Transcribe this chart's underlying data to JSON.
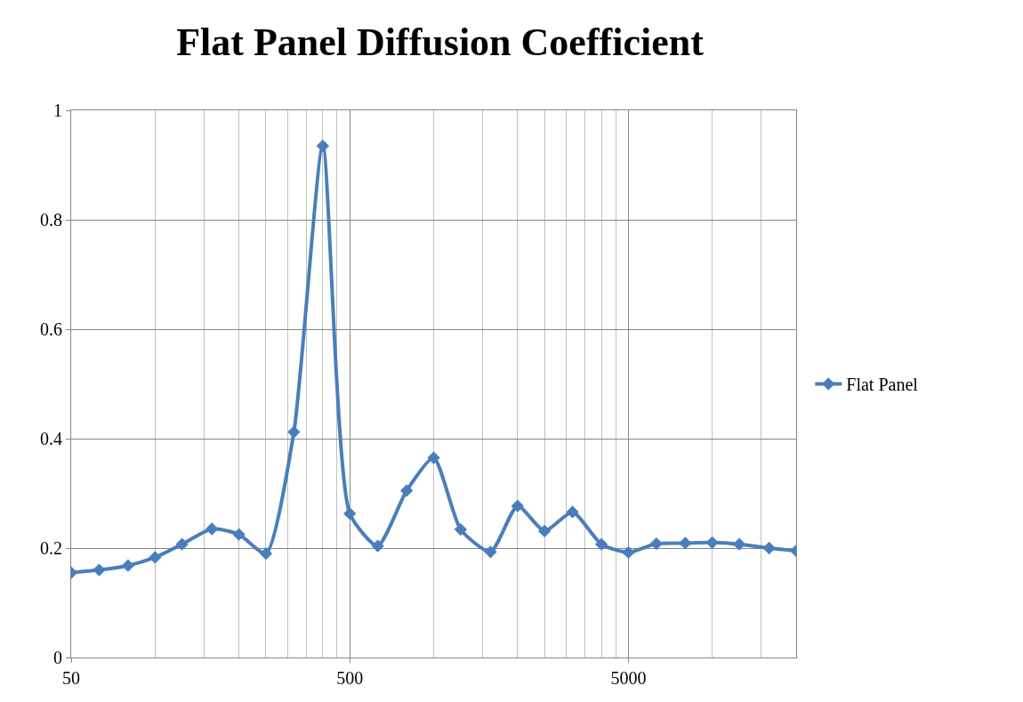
{
  "chart_data": {
    "type": "line",
    "title": "Flat Panel Diffusion Coefficient",
    "x": [
      50,
      63,
      80,
      100,
      125,
      160,
      200,
      250,
      315,
      400,
      500,
      630,
      800,
      1000,
      1250,
      1600,
      2000,
      2500,
      3150,
      4000,
      5000,
      6300,
      8000,
      10000,
      12500,
      16000,
      20000
    ],
    "series": [
      {
        "name": "Flat Panel",
        "color": "#4a7ebb",
        "values": [
          0.155,
          0.16,
          0.168,
          0.183,
          0.207,
          0.235,
          0.225,
          0.19,
          0.412,
          0.935,
          0.263,
          0.204,
          0.305,
          0.365,
          0.234,
          0.193,
          0.277,
          0.231,
          0.266,
          0.207,
          0.192,
          0.208,
          0.209,
          0.21,
          0.207,
          0.2,
          0.195
        ]
      }
    ],
    "log": "x",
    "xlim": [
      50,
      20000
    ],
    "xticks": [
      50,
      {
        "value": 100,
        "label": null
      },
      {
        "value": 150,
        "label": null
      },
      {
        "value": 200,
        "label": null
      },
      {
        "value": 250,
        "label": null
      },
      {
        "value": 300,
        "label": null
      },
      {
        "value": 350,
        "label": null
      },
      {
        "value": 400,
        "label": null
      },
      {
        "value": 450,
        "label": null
      },
      500,
      {
        "value": 1000,
        "label": null
      },
      {
        "value": 1500,
        "label": null
      },
      {
        "value": 2000,
        "label": null
      },
      {
        "value": 2500,
        "label": null
      },
      {
        "value": 3000,
        "label": null
      },
      {
        "value": 3500,
        "label": null
      },
      {
        "value": 4000,
        "label": null
      },
      {
        "value": 4500,
        "label": null
      },
      5000,
      {
        "value": 10000,
        "label": null
      },
      {
        "value": 15000,
        "label": null
      }
    ],
    "ylim": [
      0,
      1
    ],
    "yticks": [
      0,
      0.2,
      0.4,
      0.6,
      0.8,
      1
    ],
    "grid": true,
    "legend": "right",
    "marker": "diamond",
    "line_style": "solid"
  }
}
